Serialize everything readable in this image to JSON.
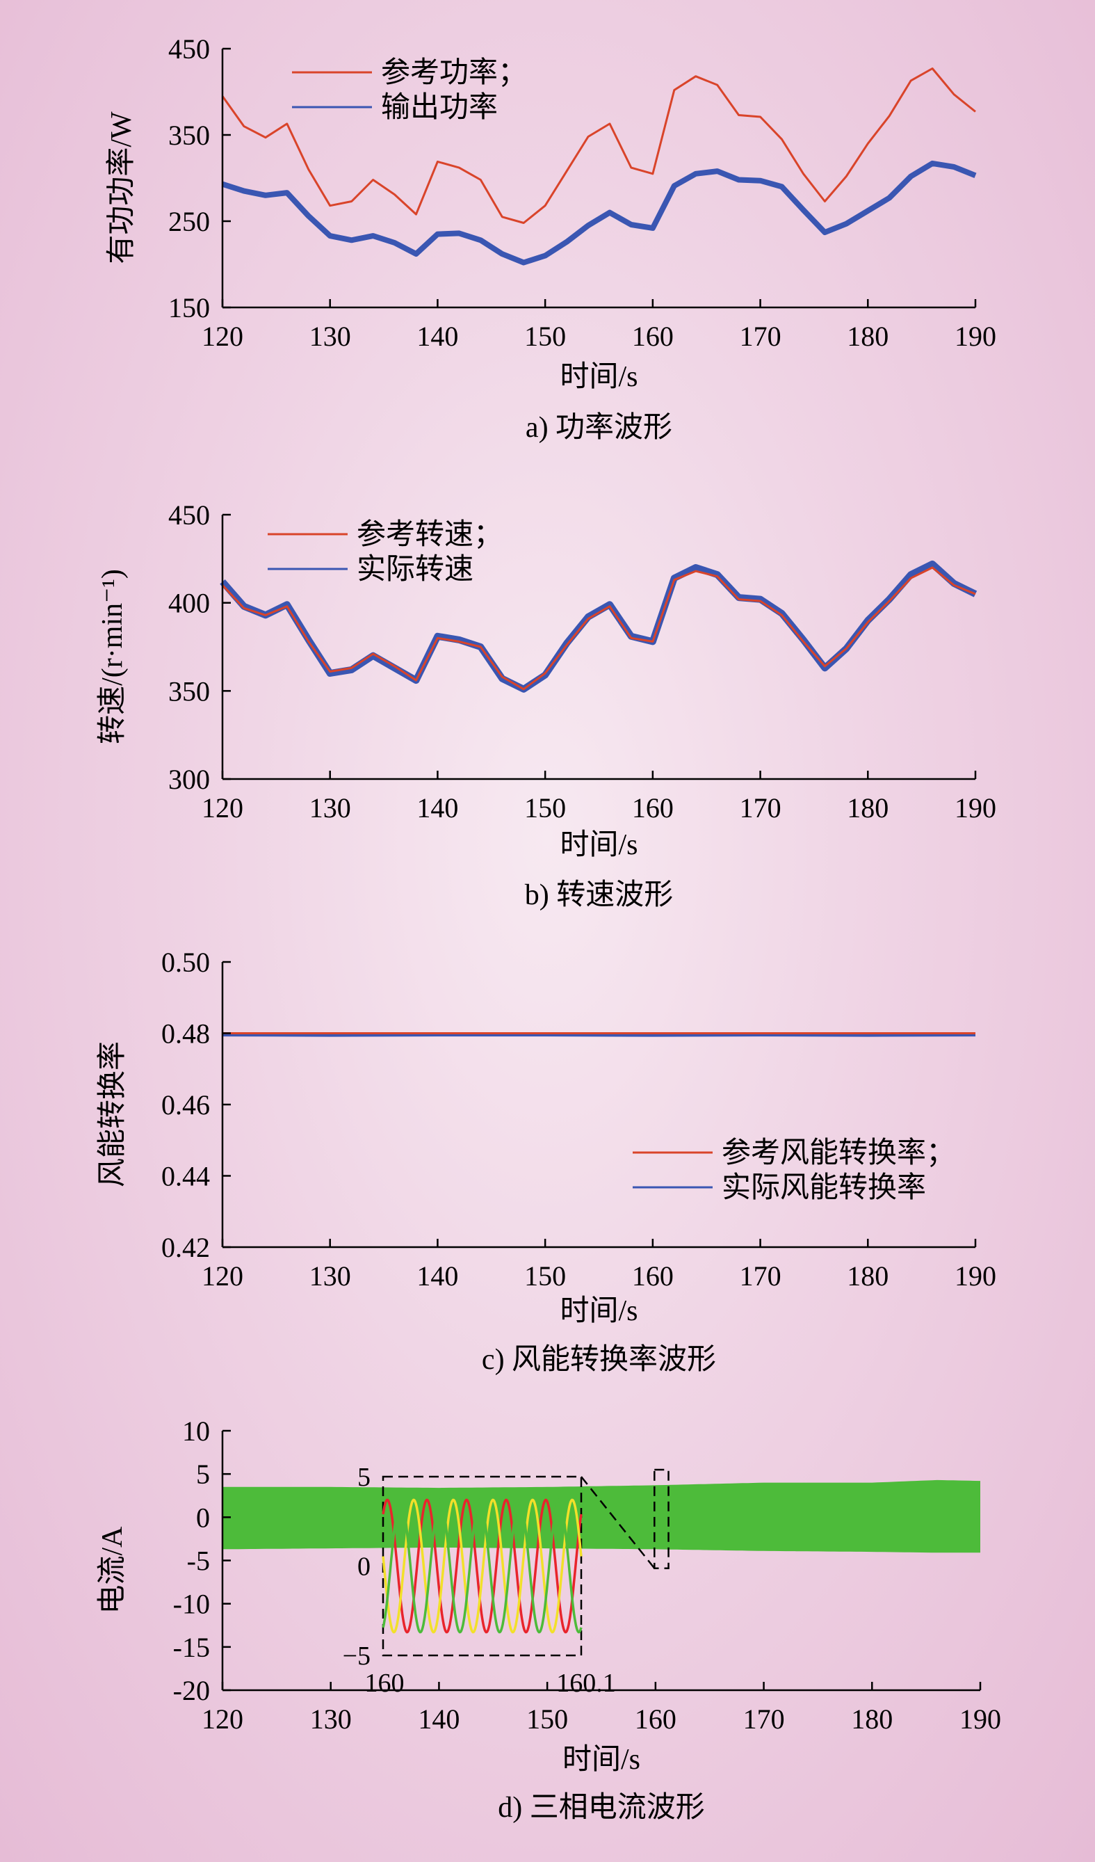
{
  "chart_data": [
    {
      "type": "line",
      "caption": "a) 功率波形",
      "xlabel": "时间/s",
      "ylabel": "有功功率/W",
      "xlim": [
        120,
        190
      ],
      "ylim": [
        150,
        450
      ],
      "xticks": [
        120,
        130,
        140,
        150,
        160,
        170,
        180,
        190
      ],
      "yticks": [
        150,
        250,
        350,
        450
      ],
      "legend_position": "top-left",
      "series": [
        {
          "name": "参考功率；",
          "color": "#d9442a",
          "x": [
            120,
            122,
            124,
            126,
            128,
            130,
            132,
            134,
            136,
            138,
            140,
            142,
            144,
            146,
            148,
            150,
            152,
            154,
            156,
            158,
            160,
            162,
            164,
            166,
            168,
            170,
            172,
            174,
            176,
            178,
            180,
            182,
            184,
            186,
            188,
            190
          ],
          "y": [
            395,
            360,
            347,
            363,
            310,
            268,
            273,
            298,
            281,
            258,
            319,
            312,
            298,
            255,
            248,
            268,
            308,
            348,
            363,
            312,
            305,
            402,
            418,
            408,
            373,
            371,
            345,
            305,
            273,
            302,
            340,
            372,
            413,
            427,
            397,
            377
          ]
        },
        {
          "name": "输出功率",
          "color": "#3a56b2",
          "x": [
            120,
            122,
            124,
            126,
            128,
            130,
            132,
            134,
            136,
            138,
            140,
            142,
            144,
            146,
            148,
            150,
            152,
            154,
            156,
            158,
            160,
            162,
            164,
            166,
            168,
            170,
            172,
            174,
            176,
            178,
            180,
            182,
            184,
            186,
            188,
            190
          ],
          "y": [
            293,
            285,
            280,
            283,
            256,
            233,
            228,
            233,
            225,
            212,
            235,
            236,
            228,
            212,
            202,
            210,
            226,
            245,
            260,
            246,
            242,
            291,
            305,
            308,
            298,
            297,
            290,
            263,
            237,
            247,
            262,
            277,
            302,
            317,
            313,
            303
          ]
        }
      ]
    },
    {
      "type": "line",
      "caption": "b) 转速波形",
      "xlabel": "时间/s",
      "ylabel": "转速/(r·min⁻¹)",
      "xlim": [
        120,
        190
      ],
      "ylim": [
        300,
        450
      ],
      "xticks": [
        120,
        130,
        140,
        150,
        160,
        170,
        180,
        190
      ],
      "yticks": [
        300,
        350,
        400,
        450
      ],
      "legend_position": "top-left",
      "series": [
        {
          "name": "参考转速；",
          "color": "#d9442a",
          "x": [
            120,
            122,
            124,
            126,
            128,
            130,
            132,
            134,
            136,
            138,
            140,
            142,
            144,
            146,
            148,
            150,
            152,
            154,
            156,
            158,
            160,
            162,
            164,
            166,
            168,
            170,
            172,
            174,
            176,
            178,
            180,
            182,
            184,
            186,
            188,
            190
          ],
          "y": [
            410,
            397,
            393,
            398,
            378,
            361,
            363,
            371,
            364,
            356,
            380,
            378,
            375,
            358,
            351,
            360,
            376,
            391,
            398,
            380,
            378,
            413,
            418,
            415,
            402,
            401,
            393,
            378,
            364,
            374,
            389,
            401,
            414,
            420,
            410,
            405
          ]
        },
        {
          "name": "实际转速",
          "color": "#3a56b2",
          "x": [
            120,
            122,
            124,
            126,
            128,
            130,
            132,
            134,
            136,
            138,
            140,
            142,
            144,
            146,
            148,
            150,
            152,
            154,
            156,
            158,
            160,
            162,
            164,
            166,
            168,
            170,
            172,
            174,
            176,
            178,
            180,
            182,
            184,
            186,
            188,
            190
          ],
          "y": [
            412,
            398,
            393,
            399,
            379,
            360,
            362,
            370,
            363,
            356,
            381,
            379,
            375,
            357,
            351,
            359,
            377,
            392,
            399,
            381,
            378,
            414,
            420,
            416,
            403,
            402,
            394,
            379,
            363,
            374,
            390,
            402,
            416,
            422,
            411,
            405
          ]
        }
      ]
    },
    {
      "type": "line",
      "caption": "c) 风能转换率波形",
      "xlabel": "时间/s",
      "ylabel": "风能转换率",
      "xlim": [
        120,
        190
      ],
      "ylim": [
        0.42,
        0.5
      ],
      "xticks": [
        120,
        130,
        140,
        150,
        160,
        170,
        180,
        190
      ],
      "yticks": [
        0.42,
        0.44,
        0.46,
        0.48,
        0.5
      ],
      "ytick_labels": [
        "0.42",
        "0.44",
        "0.46",
        "0.48",
        "0.50"
      ],
      "legend_position": "bottom-right",
      "series": [
        {
          "name": "参考风能转换率；",
          "color": "#d9442a",
          "x": [
            120,
            190
          ],
          "y": [
            0.48,
            0.48
          ]
        },
        {
          "name": "实际风能转换率",
          "color": "#3a56b2",
          "x": [
            120,
            130,
            140,
            150,
            160,
            170,
            180,
            190
          ],
          "y": [
            0.4795,
            0.4794,
            0.4795,
            0.4795,
            0.4794,
            0.4795,
            0.4794,
            0.4795
          ]
        }
      ]
    },
    {
      "type": "area",
      "caption": "d) 三相电流波形",
      "xlabel": "时间/s",
      "ylabel": "电流/A",
      "xlim": [
        120,
        190
      ],
      "ylim": [
        -20,
        10
      ],
      "xticks": [
        120,
        130,
        140,
        150,
        160,
        170,
        180,
        190
      ],
      "yticks": [
        -20,
        -15,
        -10,
        -5,
        0,
        5,
        10
      ],
      "envelope": {
        "color": "#4dbb3a",
        "x": [
          120,
          130,
          140,
          150,
          160,
          170,
          180,
          186,
          190
        ],
        "upper": [
          3.5,
          3.5,
          3.4,
          3.5,
          3.7,
          4.0,
          4.0,
          4.3,
          4.2
        ],
        "lower": [
          -3.7,
          -3.6,
          -3.5,
          -3.6,
          -3.7,
          -3.9,
          -4.0,
          -4.1,
          -4.1
        ]
      },
      "inset": {
        "xlim": [
          160,
          160.1
        ],
        "ylim": [
          -5,
          5
        ],
        "xtick_labels": [
          "160",
          "160.1"
        ],
        "ytick_labels": [
          "5",
          "0",
          "−5"
        ],
        "amplitude": 3.7,
        "cycles": 5,
        "phase_colors": [
          "#e8242c",
          "#f2e02a",
          "#4dbb3a"
        ]
      }
    }
  ]
}
